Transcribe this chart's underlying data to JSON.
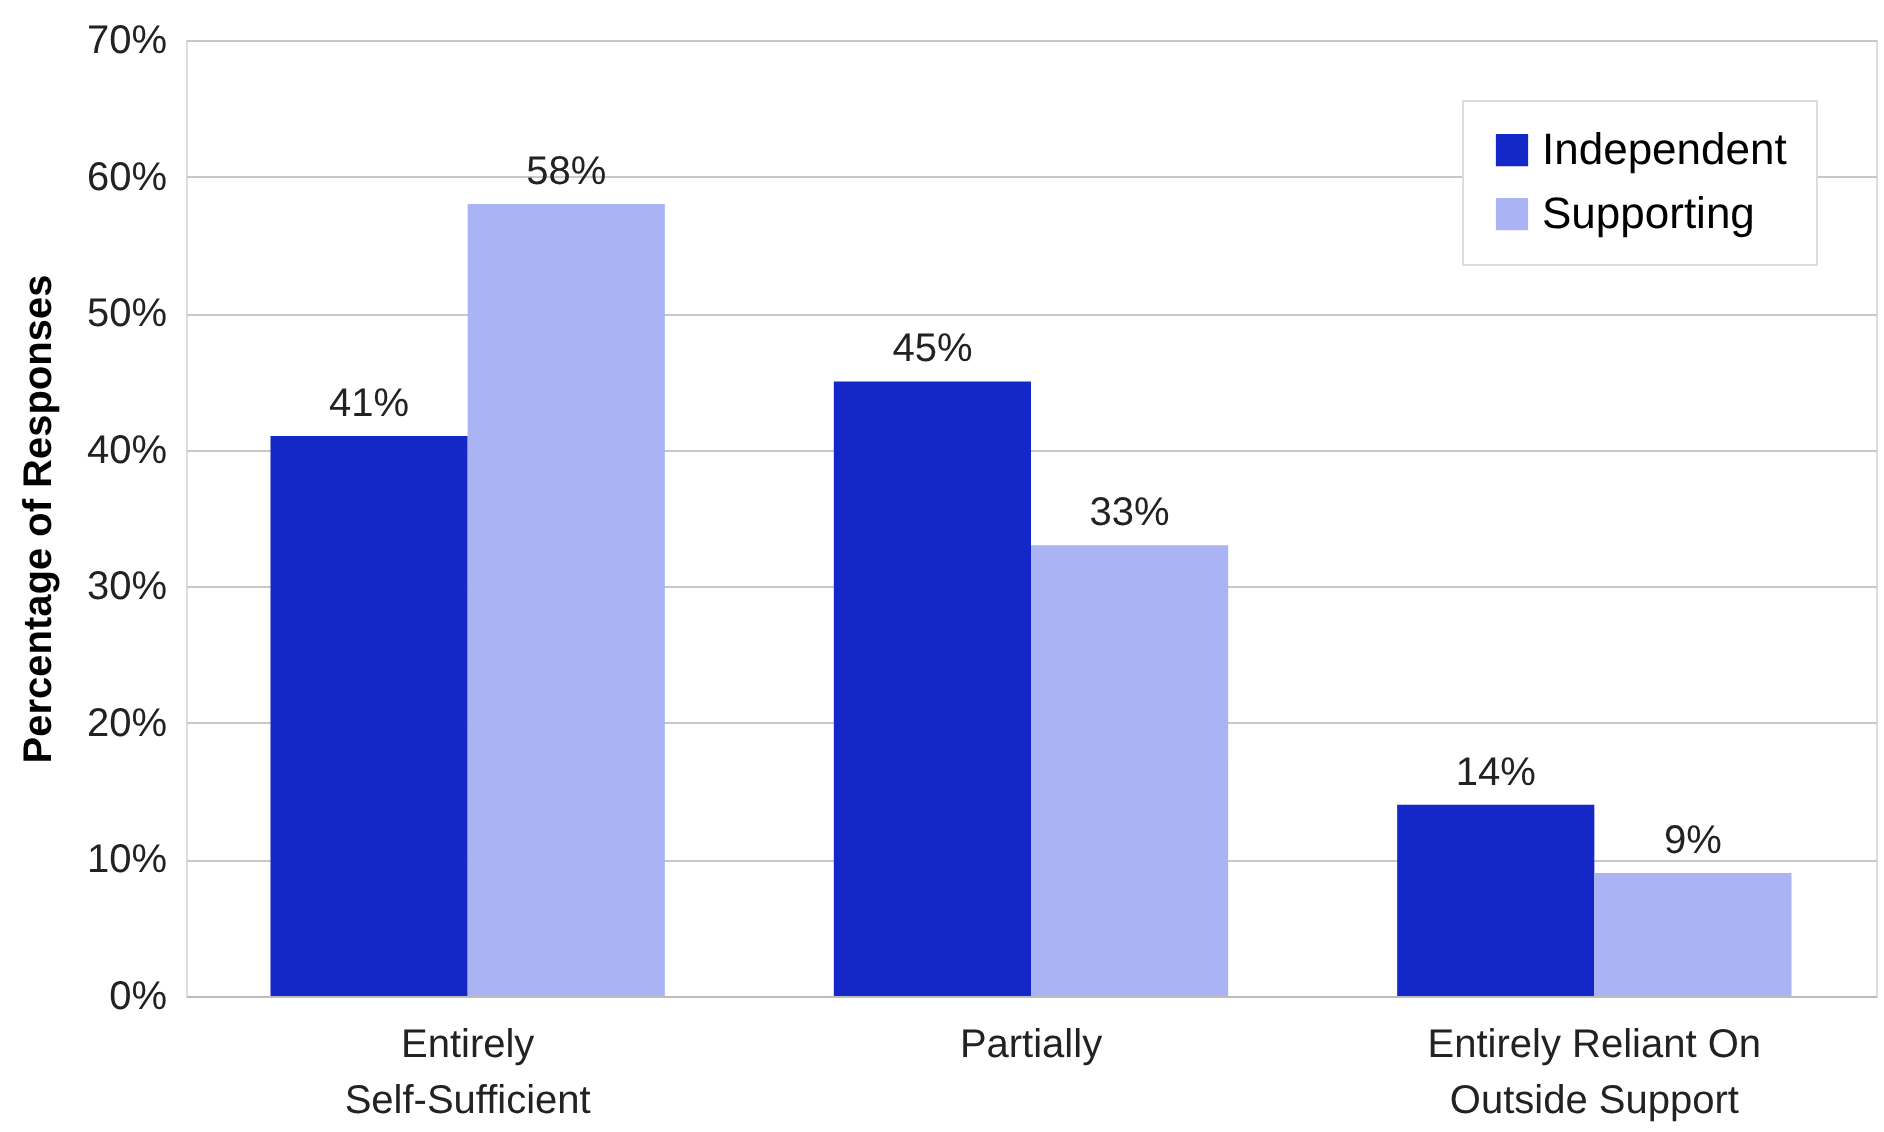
{
  "chart_data": {
    "type": "bar",
    "ylabel": "Percentage of Responses",
    "categories": [
      "Entirely Self-Sufficient",
      "Partially",
      "Entirely Reliant On Outside Support"
    ],
    "series": [
      {
        "name": "Independent",
        "color": "#1428c8",
        "values": [
          41,
          45,
          14
        ],
        "value_labels": [
          "41%",
          "45%",
          "14%"
        ]
      },
      {
        "name": "Supporting",
        "color": "#aab4f5",
        "values": [
          58,
          33,
          9
        ],
        "value_labels": [
          "58%",
          "33%",
          "9%"
        ]
      }
    ],
    "ylim": [
      0,
      70
    ],
    "yticks": [
      {
        "value": 0,
        "label": "0%"
      },
      {
        "value": 10,
        "label": "10%"
      },
      {
        "value": 20,
        "label": "20%"
      },
      {
        "value": 30,
        "label": "30%"
      },
      {
        "value": 40,
        "label": "40%"
      },
      {
        "value": 50,
        "label": "50%"
      },
      {
        "value": 60,
        "label": "60%"
      },
      {
        "value": 70,
        "label": "70%"
      }
    ],
    "grid": "y",
    "legend": "top right"
  }
}
